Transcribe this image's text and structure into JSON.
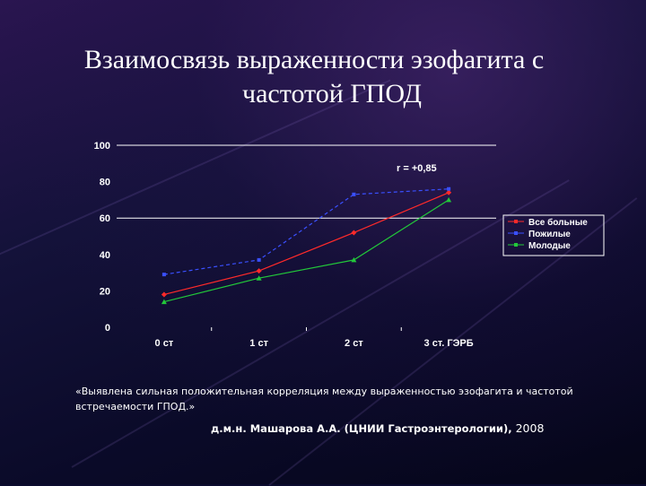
{
  "slide": {
    "title_line1": "Взаимосвязь выраженности эзофагита с",
    "title_line2": "частотой ГПОД",
    "quote": "«Выявлена сильная положительная корреляция между выраженностью эзофагита и частотой встречаемости ГПОД.»",
    "author": "д.м.н. Машарова А.А. (ЦНИИ Гастроэнтерологии),",
    "year": "2008"
  },
  "chart_data": {
    "type": "line",
    "categories": [
      "0 ст",
      "1 ст",
      "2 ст",
      "3 ст. ГЭРБ"
    ],
    "ylim": [
      0,
      100
    ],
    "yticks": [
      "0",
      "20",
      "40",
      "60",
      "80",
      "100"
    ],
    "annotation": "r = +0,85",
    "legend_position": "right",
    "grid": false,
    "series": [
      {
        "name": "Все больные",
        "values": [
          18,
          31,
          52,
          74
        ],
        "color": "#ff2a2a",
        "marker": "diamond"
      },
      {
        "name": "Пожилые",
        "values": [
          29,
          37,
          73,
          76
        ],
        "color": "#3a50ff",
        "marker": "square"
      },
      {
        "name": "Молодые",
        "values": [
          14,
          27,
          37,
          70
        ],
        "color": "#22c83a",
        "marker": "triangle"
      }
    ]
  }
}
